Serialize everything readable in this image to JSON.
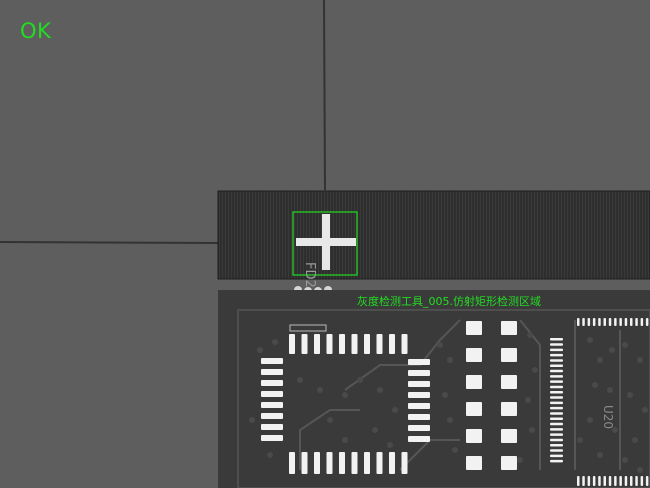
{
  "inspection": {
    "status": "OK",
    "roi_label": "灰度检测工具_005.仿射矩形检测区域"
  },
  "board": {
    "marking_fd": "FD2",
    "marking_u": "U20"
  },
  "colors": {
    "overlay": "#22dd22",
    "background": "#5e5e5e",
    "board": "#3a3a3a",
    "pad": "#f0f0f0"
  }
}
